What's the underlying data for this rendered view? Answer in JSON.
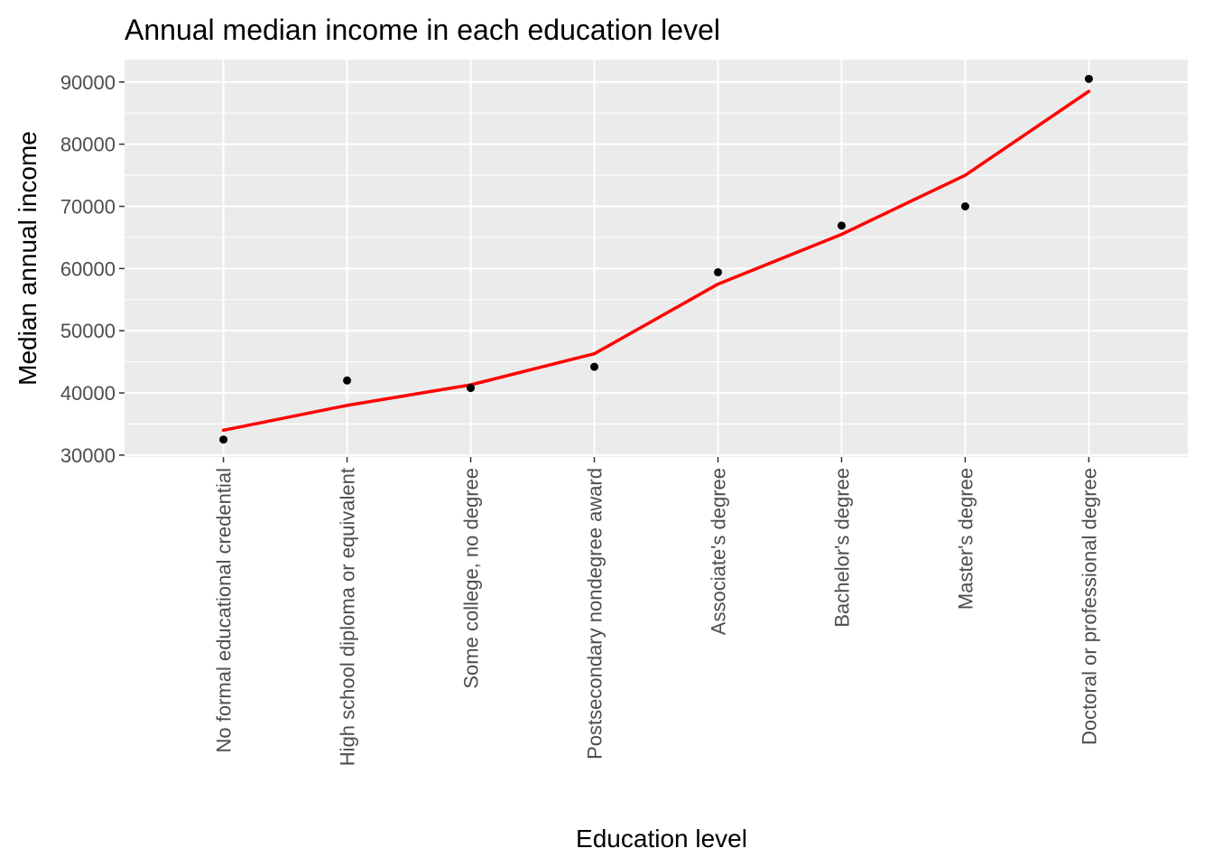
{
  "chart_data": {
    "type": "line",
    "title": "Annual median income in each education level",
    "xlabel": "Education level",
    "ylabel": "Median annual income",
    "categories": [
      "No formal educational credential",
      "High school diploma or equivalent",
      "Some college, no degree",
      "Postsecondary nondegree award",
      "Associate's degree",
      "Bachelor's degree",
      "Master's degree",
      "Doctoral or professional degree"
    ],
    "series": [
      {
        "kind": "points",
        "color": "#000000",
        "values": [
          32500,
          42000,
          40800,
          44200,
          59400,
          66900,
          70000,
          90500
        ]
      },
      {
        "kind": "smooth-line",
        "color": "#ff0000",
        "values": [
          34000,
          38000,
          41300,
          46300,
          57500,
          65500,
          75000,
          88500
        ]
      }
    ],
    "ylim": [
      29700,
      93600
    ],
    "yticks": [
      30000,
      40000,
      50000,
      60000,
      70000,
      80000,
      90000
    ],
    "ytick_labels": [
      "30000",
      "40000",
      "50000",
      "60000",
      "70000",
      "80000",
      "90000"
    ],
    "grid": true,
    "panel_background": "#ebebeb",
    "legend": "none"
  }
}
